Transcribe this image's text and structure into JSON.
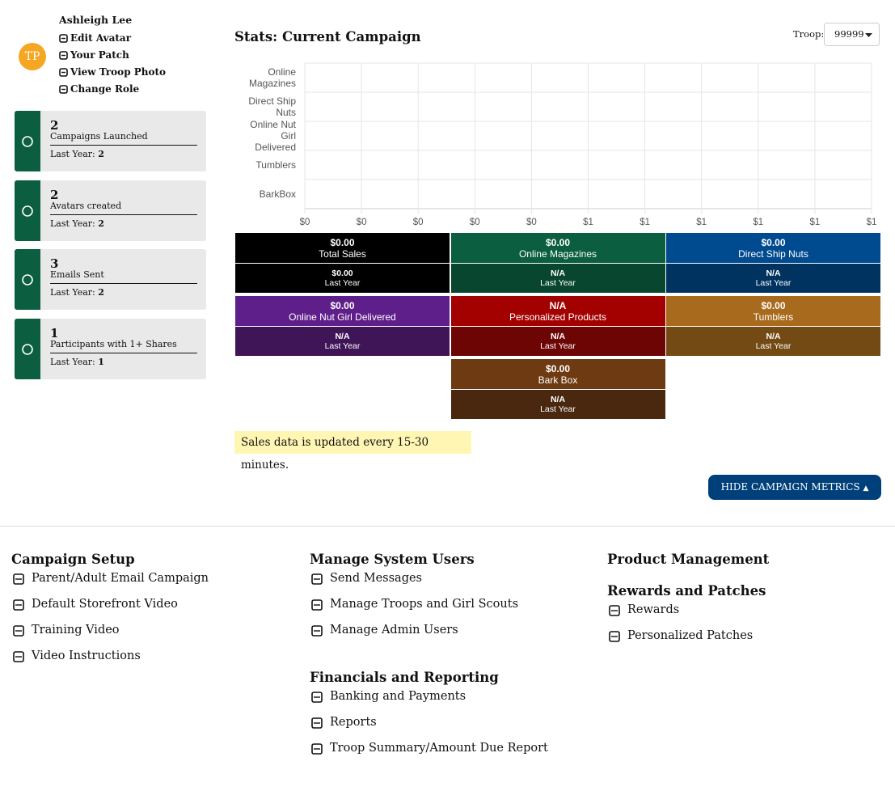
{
  "sidebar": {
    "initials": "TP",
    "name": "Ashleigh Lee",
    "menu": [
      "Edit Avatar",
      "Your Patch",
      "View Troop Photo",
      "Change Role"
    ],
    "last_year_label": "Last Year:",
    "stats": [
      {
        "value": 2,
        "label": "Campaigns Launched",
        "last_year": 2
      },
      {
        "value": 2,
        "label": "Avatars created",
        "last_year": 2
      },
      {
        "value": 3,
        "label": "Emails Sent",
        "last_year": 2
      },
      {
        "value": 1,
        "label": "Participants with 1+ Shares",
        "last_year": 1
      }
    ]
  },
  "stats_title": "Stats: Current Campaign",
  "troop_label": "Troop:",
  "troop_value": "99999",
  "chart": {
    "type": "bar",
    "orientation": "horizontal",
    "categories": [
      "Online Magazines",
      "Direct Ship Nuts",
      "Online Nut Girl Delivered",
      "Tumblers",
      "BarkBox"
    ],
    "values": [
      0,
      0,
      0,
      0,
      0
    ],
    "colors": [
      "#0b5e3f",
      "#004a8f",
      "#5f1f8a",
      "#a86a1c",
      "#6e3a12"
    ],
    "xlim": [
      0,
      1
    ],
    "xticks": [
      {
        "value": 0,
        "label": "$0"
      },
      {
        "value": 0.1,
        "label": "$0"
      },
      {
        "value": 0.2,
        "label": "$0"
      },
      {
        "value": 0.3,
        "label": "$0"
      },
      {
        "value": 0.4,
        "label": "$0"
      },
      {
        "value": 0.5,
        "label": "$1"
      },
      {
        "value": 0.6,
        "label": "$1"
      },
      {
        "value": 0.7,
        "label": "$1"
      },
      {
        "value": 0.8,
        "label": "$1"
      },
      {
        "value": 0.9,
        "label": "$1"
      },
      {
        "value": 1,
        "label": "$1"
      }
    ],
    "grid": true
  },
  "tiles": [
    {
      "value": "$0.00",
      "label": "Total Sales",
      "last_year": "$0.00",
      "last_year_label": "Last Year",
      "color": "#000000",
      "dark_color": "#000000"
    },
    {
      "value": "$0.00",
      "label": "Online Magazines",
      "last_year": "N/A",
      "last_year_label": "Last Year",
      "color": "#0b5e3f",
      "dark_color": "#08462f"
    },
    {
      "value": "$0.00",
      "label": "Direct Ship Nuts",
      "last_year": "N/A",
      "last_year_label": "Last Year",
      "color": "#004a8f",
      "dark_color": "#00335f"
    },
    {
      "value": "$0.00",
      "label": "Online Nut Girl Delivered",
      "last_year": "N/A",
      "last_year_label": "Last Year",
      "color": "#5f1f8a",
      "dark_color": "#3f1558"
    },
    {
      "value": "N/A",
      "label": "Personalized Products",
      "last_year": "N/A",
      "last_year_label": "Last Year",
      "color": "#a30000",
      "dark_color": "#6e0505"
    },
    {
      "value": "$0.00",
      "label": "Tumblers",
      "last_year": "N/A",
      "last_year_label": "Last Year",
      "color": "#a86a1c",
      "dark_color": "#734a14"
    },
    {
      "value": "$0.00",
      "label": "Bark Box",
      "last_year": "N/A",
      "last_year_label": "Last Year",
      "color": "#6e3a12",
      "dark_color": "#4a2810"
    }
  ],
  "note": "Sales data is updated every 15-30 minutes.",
  "button": "HIDE CAMPAIGN METRICS",
  "footer": {
    "columns": [
      [
        {
          "title": "Campaign Setup",
          "links": [
            "Parent/Adult Email Campaign",
            "Default Storefront Video",
            "Training Video",
            "Video Instructions"
          ]
        }
      ],
      [
        {
          "title": "Manage System Users",
          "links": [
            "Send Messages",
            "Manage Troops and Girl Scouts",
            "Manage Admin Users"
          ]
        },
        {
          "title": "Financials and Reporting",
          "links": [
            "Banking and Payments",
            "Reports",
            "Troop Summary/Amount Due Report"
          ]
        }
      ],
      [
        {
          "title": "Product Management",
          "links": []
        },
        {
          "title": "Rewards and Patches",
          "links": [
            "Rewards",
            "Personalized Patches"
          ]
        }
      ]
    ]
  }
}
